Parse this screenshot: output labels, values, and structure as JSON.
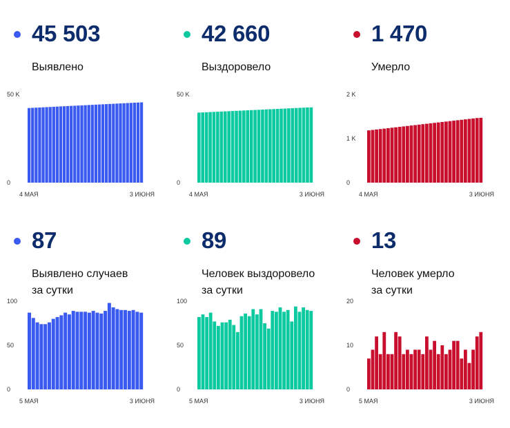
{
  "colors": {
    "blue": "#3b5bf0",
    "green": "#0cc9a0",
    "red": "#c8102e",
    "number": "#0d2c6c"
  },
  "panels": [
    {
      "number": "45 503",
      "label_lines": [
        "Выявлено"
      ],
      "color": "blue"
    },
    {
      "number": "42 660",
      "label_lines": [
        "Выздоровело"
      ],
      "color": "green"
    },
    {
      "number": "1 470",
      "label_lines": [
        "Умерло"
      ],
      "color": "red"
    },
    {
      "number": "87",
      "label_lines": [
        "Выявлено случаев",
        "за сутки"
      ],
      "color": "blue"
    },
    {
      "number": "89",
      "label_lines": [
        "Человек выздоровело",
        "за сутки"
      ],
      "color": "green"
    },
    {
      "number": "13",
      "label_lines": [
        "Человек умерло",
        "за сутки"
      ],
      "color": "red"
    }
  ],
  "chart_data": [
    {
      "type": "bar",
      "series_color": "blue",
      "ylim": [
        0,
        50000
      ],
      "yticks": [
        {
          "v": 0,
          "label": "0"
        },
        {
          "v": 50000,
          "label": "50 K"
        }
      ],
      "xlabels": [
        "4 МАЯ",
        "3 ИЮНЯ"
      ],
      "values": [
        42300,
        42400,
        42500,
        42600,
        42700,
        42800,
        42900,
        43000,
        43100,
        43200,
        43300,
        43400,
        43500,
        43600,
        43700,
        43800,
        43900,
        44000,
        44100,
        44200,
        44300,
        44400,
        44500,
        44600,
        44700,
        44800,
        44900,
        45000,
        45100,
        45200,
        45300,
        45400,
        45503
      ]
    },
    {
      "type": "bar",
      "series_color": "green",
      "ylim": [
        0,
        50000
      ],
      "yticks": [
        {
          "v": 0,
          "label": "0"
        },
        {
          "v": 50000,
          "label": "50 K"
        }
      ],
      "xlabels": [
        "4 МАЯ",
        "3 ИЮНЯ"
      ],
      "values": [
        39700,
        39800,
        39900,
        40000,
        40100,
        40200,
        40300,
        40400,
        40500,
        40600,
        40700,
        40800,
        40900,
        41000,
        41100,
        41200,
        41300,
        41400,
        41500,
        41600,
        41700,
        41800,
        41900,
        42000,
        42100,
        42200,
        42300,
        42400,
        42500,
        42600,
        42660
      ]
    },
    {
      "type": "bar",
      "series_color": "red",
      "ylim": [
        0,
        2000
      ],
      "yticks": [
        {
          "v": 0,
          "label": "0"
        },
        {
          "v": 1000,
          "label": "1 K"
        },
        {
          "v": 2000,
          "label": "2 K"
        }
      ],
      "xlabels": [
        "4 МАЯ",
        "3 ИЮНЯ"
      ],
      "values": [
        1185,
        1195,
        1205,
        1215,
        1225,
        1235,
        1245,
        1255,
        1265,
        1275,
        1285,
        1295,
        1305,
        1315,
        1325,
        1335,
        1345,
        1355,
        1365,
        1375,
        1385,
        1395,
        1405,
        1415,
        1425,
        1435,
        1445,
        1455,
        1465,
        1470
      ]
    },
    {
      "type": "bar",
      "series_color": "blue",
      "ylim": [
        0,
        100
      ],
      "yticks": [
        {
          "v": 0,
          "label": "0"
        },
        {
          "v": 50,
          "label": "50"
        },
        {
          "v": 100,
          "label": "100"
        }
      ],
      "xlabels": [
        "5 МАЯ",
        "3 ИЮНЯ"
      ],
      "values": [
        87,
        81,
        76,
        74,
        74,
        76,
        80,
        82,
        84,
        87,
        85,
        89,
        88,
        88,
        88,
        87,
        89,
        87,
        86,
        89,
        98,
        93,
        91,
        90,
        90,
        89,
        90,
        88,
        87
      ]
    },
    {
      "type": "bar",
      "series_color": "green",
      "ylim": [
        0,
        100
      ],
      "yticks": [
        {
          "v": 0,
          "label": "0"
        },
        {
          "v": 50,
          "label": "50"
        },
        {
          "v": 100,
          "label": "100"
        }
      ],
      "xlabels": [
        "5 МАЯ",
        "3 ИЮНЯ"
      ],
      "values": [
        82,
        85,
        82,
        87,
        77,
        72,
        76,
        76,
        79,
        73,
        65,
        83,
        86,
        83,
        91,
        85,
        91,
        75,
        69,
        89,
        88,
        93,
        88,
        90,
        77,
        94,
        88,
        93,
        90,
        89
      ]
    },
    {
      "type": "bar",
      "series_color": "red",
      "ylim": [
        0,
        20
      ],
      "yticks": [
        {
          "v": 0,
          "label": "0"
        },
        {
          "v": 10,
          "label": "10"
        },
        {
          "v": 20,
          "label": "20"
        }
      ],
      "xlabels": [
        "5 МАЯ",
        "3 ИЮНЯ"
      ],
      "values": [
        7,
        9,
        12,
        8,
        13,
        8,
        8,
        13,
        12,
        8,
        9,
        8,
        9,
        9,
        8,
        12,
        9,
        11,
        8,
        10,
        8,
        9,
        11,
        11,
        7,
        9,
        6,
        9,
        12,
        13
      ]
    }
  ]
}
